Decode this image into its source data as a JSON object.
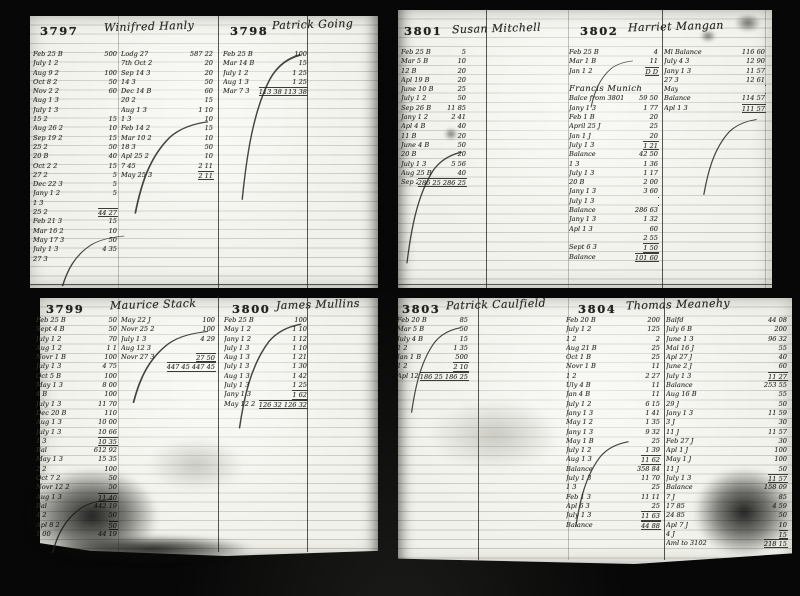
{
  "colors": {
    "ink": "#2c2c28",
    "paper": "#f2f2ec",
    "scan_background": "#070707",
    "ruled_line": "#b9b9ae"
  },
  "accounts": {
    "a3797": {
      "number": "3797",
      "name": "Winifred Hanly",
      "left": [
        {
          "d": "Feb 25 B",
          "a": "500"
        },
        {
          "d": "July 1 2",
          "a": ""
        },
        {
          "d": "Aug 9 2",
          "a": "100"
        },
        {
          "d": "Oct 8 2",
          "a": "50"
        },
        {
          "d": "Nov 2 2",
          "a": "60"
        },
        {
          "d": "Aug 1 3",
          "a": ""
        },
        {
          "d": "July 1 3",
          "a": ""
        },
        {
          "d": "15 2",
          "a": "15"
        },
        {
          "d": "Aug 26 2",
          "a": "10"
        },
        {
          "d": "Sep 19 2",
          "a": "15"
        },
        {
          "d": "25 2",
          "a": "50"
        },
        {
          "d": "20 B",
          "a": "40"
        },
        {
          "d": "Oct 2 2",
          "a": "15"
        },
        {
          "d": "27 2",
          "a": "5"
        },
        {
          "d": "Dec 22 3",
          "a": "5"
        },
        {
          "d": "Jany 1 2",
          "a": "5"
        },
        {
          "d": "1 3",
          "a": ""
        },
        {
          "d": "25 2",
          "a": "44 27",
          "u": 1
        },
        {
          "d": "Feb 21 3",
          "a": "15"
        },
        {
          "d": "Mar 16 2",
          "a": "10"
        },
        {
          "d": "May 17 3",
          "a": "50"
        },
        {
          "d": "July 1 3",
          "a": "4 35"
        },
        {
          "d": "27 3",
          "a": ""
        }
      ],
      "right": [
        {
          "d": "Lodg 27",
          "a": "587 22"
        },
        {
          "d": "7th Oct 2",
          "a": "20"
        },
        {
          "d": "Sep 14 3",
          "a": "20"
        },
        {
          "d": "14 3",
          "a": "50"
        },
        {
          "d": "Dec 14 B",
          "a": "60"
        },
        {
          "d": "20 2",
          "a": "15"
        },
        {
          "d": "Aug 1 3",
          "a": "1 10"
        },
        {
          "d": "1 3",
          "a": "10"
        },
        {
          "d": "Feb 14 2",
          "a": "15"
        },
        {
          "d": "Mar 10 2",
          "a": "10"
        },
        {
          "d": "18 3",
          "a": "50"
        },
        {
          "d": "Apl 25 2",
          "a": "10"
        },
        {
          "d": "7 45",
          "a": "2 11"
        },
        {
          "d": "May 25 3",
          "a": "2 11",
          "u": 1
        }
      ]
    },
    "a3798": {
      "number": "3798",
      "name": "Patrick Going",
      "entries": [
        {
          "d": "Feb 25 B",
          "a": "100"
        },
        {
          "d": "Mar 14 B",
          "a": "15"
        },
        {
          "d": "July 1 2",
          "a": "1 25"
        },
        {
          "d": "Aug 1 3",
          "a": "1 25"
        },
        {
          "d": "Mar 7 3",
          "a": "113 38  113 38",
          "u": 1
        }
      ]
    },
    "a3801": {
      "number": "3801",
      "name": "Susan Mitchell",
      "entries": [
        {
          "d": "Feb 25 B",
          "a": "5"
        },
        {
          "d": "Mar 5 B",
          "a": "10"
        },
        {
          "d": "12 B",
          "a": "20"
        },
        {
          "d": "Apl 19 B",
          "a": "20"
        },
        {
          "d": "June 10 B",
          "a": "25"
        },
        {
          "d": "July 1 2",
          "a": "50"
        },
        {
          "d": "Sep 26 B",
          "a": "11 85"
        },
        {
          "d": "Jany 1 2",
          "a": "2 41"
        },
        {
          "d": "Apl 4 B",
          "a": "40"
        },
        {
          "d": "11 B",
          "a": "20"
        },
        {
          "d": "June 4 B",
          "a": "50"
        },
        {
          "d": "20 B",
          "a": "20"
        },
        {
          "d": "July 1 3",
          "a": "5 56"
        },
        {
          "d": "Aug 25 B",
          "a": "40"
        },
        {
          "d": "Sep 26 2",
          "a": "286 25  286 25",
          "u": 1
        }
      ]
    },
    "a3802": {
      "number": "3802",
      "name": "Harriet Mangan",
      "left": [
        {
          "d": "Feb 25 B",
          "a": "4"
        },
        {
          "d": "Mar 1 B",
          "a": "11"
        },
        {
          "d": "Jan 1 2",
          "a": "D   D",
          "u": 1
        },
        {
          "d": "",
          "a": ""
        },
        {
          "d": "Francis Munich",
          "a": "",
          "big": 1
        },
        {
          "d": "Balce from 3801",
          "a": "59 50"
        },
        {
          "d": "Jany 1 3",
          "a": "1 77"
        },
        {
          "d": "Feb 1 B",
          "a": "20"
        },
        {
          "d": "April 25 J",
          "a": "25"
        },
        {
          "d": "Jan 1 J",
          "a": "20"
        },
        {
          "d": "July 1 3",
          "a": "1 21",
          "u": 1
        },
        {
          "d": "Balance",
          "a": "42 50"
        },
        {
          "d": "1 3",
          "a": "1 36"
        },
        {
          "d": "July 1 3",
          "a": "1 17"
        },
        {
          "d": "20 B",
          "a": "2 00"
        },
        {
          "d": "Jany 1 3",
          "a": "3 60"
        },
        {
          "d": "July 1 3",
          "a": "",
          "u": 1
        },
        {
          "d": "Balance",
          "a": "286 63"
        },
        {
          "d": "Jany 1 3",
          "a": "1 32"
        },
        {
          "d": "Apl 1 3",
          "a": "60"
        },
        {
          "d": "",
          "a": "2 55"
        },
        {
          "d": "Sept 6 3",
          "a": "1 50",
          "u": 1
        },
        {
          "d": "Balance",
          "a": "101 60",
          "u": 1
        }
      ],
      "right": [
        {
          "d": "Ml Balance",
          "a": "116 60"
        },
        {
          "d": "July 4 3",
          "a": "12 90"
        },
        {
          "d": "Jany 1 3",
          "a": "11 57"
        },
        {
          "d": "27 3",
          "a": "12 61"
        },
        {
          "d": "May",
          "a": "",
          "u": 1
        },
        {
          "d": "Balance",
          "a": "114 57"
        },
        {
          "d": "Apl 1 3",
          "a": "111 57",
          "u": 1
        }
      ]
    },
    "a3799": {
      "number": "3799",
      "name": "Maurice Stack",
      "left": [
        {
          "d": "Feb 25 B",
          "a": "50"
        },
        {
          "d": "Sept 4 B",
          "a": "50"
        },
        {
          "d": "July 1 2",
          "a": "70"
        },
        {
          "d": "Aug 1 2",
          "a": "1 1"
        },
        {
          "d": "Novr 1 B",
          "a": "100"
        },
        {
          "d": "July 1 3",
          "a": "4 75"
        },
        {
          "d": "Oct 5 B",
          "a": "100"
        },
        {
          "d": "May 1 3",
          "a": "8 00"
        },
        {
          "d": "4 B",
          "a": "100"
        },
        {
          "d": "July 1 3",
          "a": "11 70"
        },
        {
          "d": "Dec 20 B",
          "a": "110"
        },
        {
          "d": "Aug 1 3",
          "a": "10 00"
        },
        {
          "d": "July 1 3",
          "a": "10 66"
        },
        {
          "d": "1 3",
          "a": "10 35",
          "u": 1
        },
        {
          "d": "Bal",
          "a": "612 92"
        },
        {
          "d": "May 1 3",
          "a": "15 35"
        },
        {
          "d": "2 2",
          "a": "100"
        },
        {
          "d": "Oct 7 2",
          "a": "50"
        },
        {
          "d": "Novr 12 2",
          "a": "50"
        },
        {
          "d": "Aug 1 3",
          "a": "11 40",
          "u": 1
        },
        {
          "d": "Bal",
          "a": "442 19"
        },
        {
          "d": "4 2",
          "a": "50"
        },
        {
          "d": "Apl 8 2",
          "a": "50",
          "u": 1
        },
        {
          "d": "1 00",
          "a": "44 19"
        }
      ],
      "right": [
        {
          "d": "May 22 J",
          "a": "100"
        },
        {
          "d": "Novr 25 2",
          "a": "100"
        },
        {
          "d": "July 1 3",
          "a": "4 29"
        },
        {
          "d": "Aug 12 3",
          "a": ""
        },
        {
          "d": "Novr 27 3",
          "a": "27 50",
          "u": 1
        },
        {
          "d": "",
          "a": "447 45  447 45",
          "u": 1
        }
      ]
    },
    "a3800": {
      "number": "3800",
      "name": "James Mullins",
      "entries": [
        {
          "d": "Feb 25 B",
          "a": "100"
        },
        {
          "d": "May 1 2",
          "a": "1 10"
        },
        {
          "d": "Jany 1 2",
          "a": "1 12"
        },
        {
          "d": "July 1 3",
          "a": "1 10"
        },
        {
          "d": "Aug 1 3",
          "a": "1 21"
        },
        {
          "d": "July 1 3",
          "a": "1 30"
        },
        {
          "d": "Aug 1 3",
          "a": "1 42"
        },
        {
          "d": "July 1 3",
          "a": "1 25"
        },
        {
          "d": "Jany 1 3",
          "a": "1 62",
          "u": 1
        },
        {
          "d": "May 12 2",
          "a": "126 32  126 32",
          "u": 1
        }
      ]
    },
    "a3803": {
      "number": "3803",
      "name": "Patrick Caulfield",
      "entries": [
        {
          "d": "Feb 20 B",
          "a": "85"
        },
        {
          "d": "Mar 5 B",
          "a": "50"
        },
        {
          "d": "July 4 B",
          "a": "15"
        },
        {
          "d": "1 2",
          "a": "1 35"
        },
        {
          "d": "Jan 1 B",
          "a": "500"
        },
        {
          "d": "1 2",
          "a": "2 10",
          "u": 1
        },
        {
          "d": "Apl 12 3",
          "a": "186 25  186 25",
          "u": 1
        }
      ]
    },
    "a3804": {
      "number": "3804",
      "name": "Thomas Meanehy",
      "left": [
        {
          "d": "Feb 20 B",
          "a": "200"
        },
        {
          "d": "July 1 2",
          "a": "125"
        },
        {
          "d": "1 2",
          "a": "2"
        },
        {
          "d": "Aug 21 B",
          "a": "25"
        },
        {
          "d": "Oct 1 B",
          "a": "25"
        },
        {
          "d": "Novr 1 B",
          "a": "11"
        },
        {
          "d": "1 2",
          "a": "2 27"
        },
        {
          "d": "Uly 4 B",
          "a": "11"
        },
        {
          "d": "Jan 4 B",
          "a": "11"
        },
        {
          "d": "July 1 2",
          "a": "6 15"
        },
        {
          "d": "Jany 1 3",
          "a": "1 41"
        },
        {
          "d": "May 1 2",
          "a": "1 35"
        },
        {
          "d": "Jany 1 3",
          "a": "9 32"
        },
        {
          "d": "May 1 B",
          "a": "25"
        },
        {
          "d": "July 1 2",
          "a": "1 39"
        },
        {
          "d": "Aug 1 3",
          "a": "11 62",
          "u": 1
        },
        {
          "d": "Balance",
          "a": "358 84"
        },
        {
          "d": "July 1 3",
          "a": "11 70"
        },
        {
          "d": "1 3",
          "a": "25"
        },
        {
          "d": "Feb 1 3",
          "a": "11 11"
        },
        {
          "d": "Apl 6 3",
          "a": "25"
        },
        {
          "d": "July 1 3",
          "a": "11 63",
          "u": 1
        },
        {
          "d": "Balance",
          "a": "44 88",
          "u": 1
        }
      ],
      "right": [
        {
          "d": "Balfd",
          "a": "44 08"
        },
        {
          "d": "July 6 B",
          "a": "200"
        },
        {
          "d": "June 1 3",
          "a": "96 32"
        },
        {
          "d": "Mal 16 J",
          "a": "55"
        },
        {
          "d": "Apl 27 J",
          "a": "40"
        },
        {
          "d": "June 2 J",
          "a": "60"
        },
        {
          "d": "July 1 3",
          "a": "11 27",
          "u": 1
        },
        {
          "d": "Balance",
          "a": "253 55"
        },
        {
          "d": "Aug 16 B",
          "a": "55"
        },
        {
          "d": "29 J",
          "a": "50"
        },
        {
          "d": "Jany 1 3",
          "a": "11 59"
        },
        {
          "d": "3 J",
          "a": "30"
        },
        {
          "d": "11 J",
          "a": "11 57"
        },
        {
          "d": "Feb 27 J",
          "a": "30"
        },
        {
          "d": "Apl 1 J",
          "a": "100"
        },
        {
          "d": "May 1 J",
          "a": "100"
        },
        {
          "d": "11 J",
          "a": "50"
        },
        {
          "d": "July 1 3",
          "a": "11 57",
          "u": 1
        },
        {
          "d": "Balance",
          "a": "158 09"
        },
        {
          "d": "7 J",
          "a": "85"
        },
        {
          "d": "17 85",
          "a": "4 59"
        },
        {
          "d": "24 85",
          "a": "50"
        },
        {
          "d": "Apl 7 J",
          "a": "10"
        },
        {
          "d": "4 J",
          "a": "15",
          "u": 1
        },
        {
          "d": "Aml to 3102",
          "a": "218 15",
          "u": 1
        }
      ]
    }
  }
}
